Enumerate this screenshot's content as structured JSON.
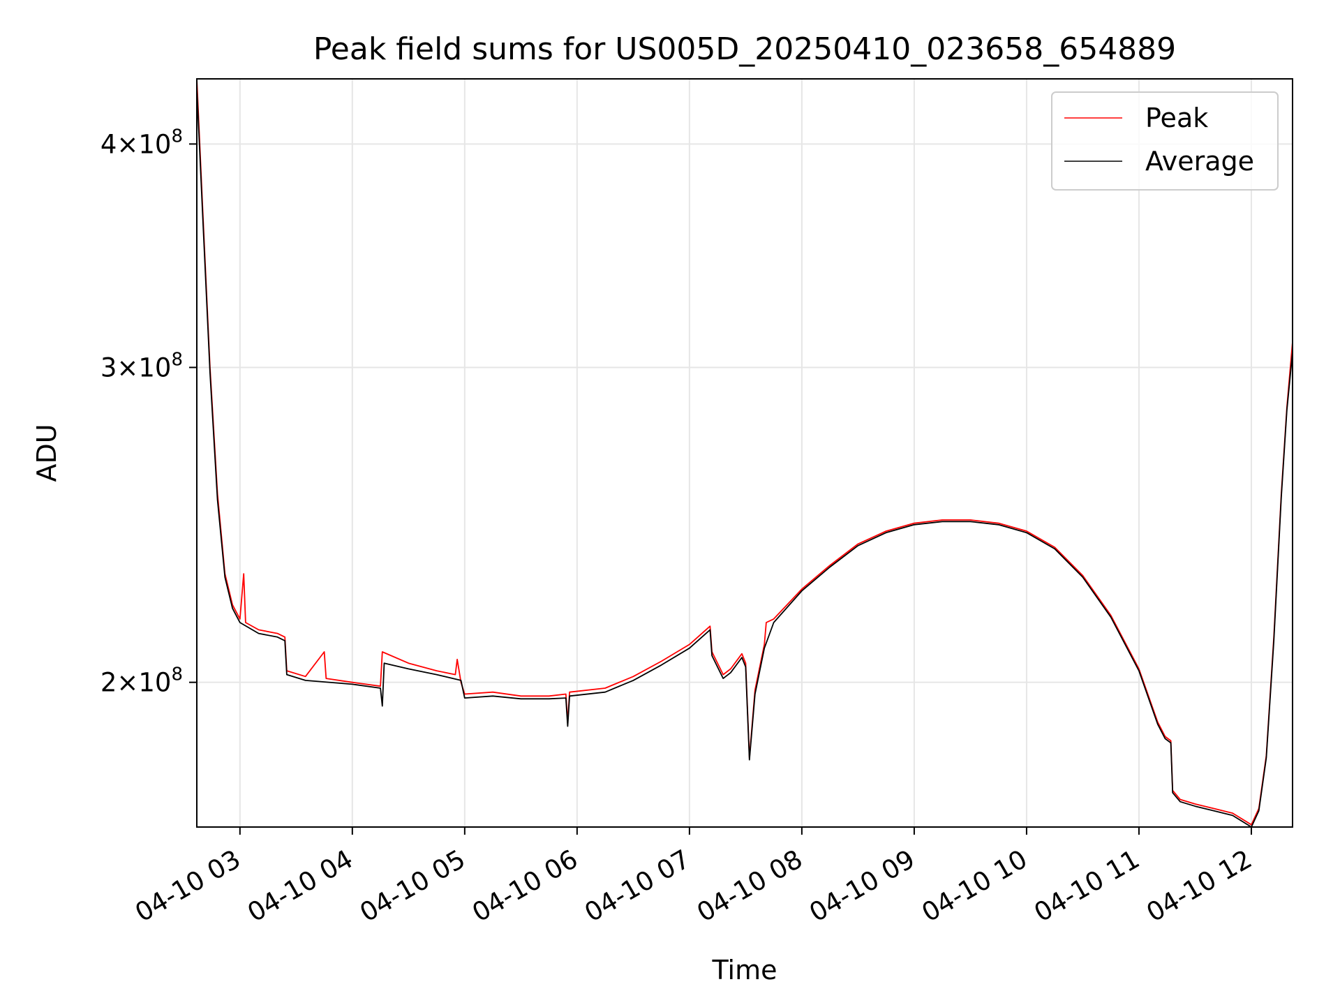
{
  "chart_data": {
    "type": "line",
    "title": "Peak field sums for US005D_20250410_023658_654889",
    "xlabel": "Time",
    "ylabel": "ADU",
    "yscale": "log",
    "ylim": [
      166000000,
      435000000
    ],
    "xlim": [
      "2025-04-10 02:36:58",
      "2025-04-10 12:22:00"
    ],
    "grid": true,
    "legend_position": "top-right",
    "x_ticks": [
      {
        "t": "2025-04-10 03:00",
        "label": "04-10 03"
      },
      {
        "t": "2025-04-10 04:00",
        "label": "04-10 04"
      },
      {
        "t": "2025-04-10 05:00",
        "label": "04-10 05"
      },
      {
        "t": "2025-04-10 06:00",
        "label": "04-10 06"
      },
      {
        "t": "2025-04-10 07:00",
        "label": "04-10 07"
      },
      {
        "t": "2025-04-10 08:00",
        "label": "04-10 08"
      },
      {
        "t": "2025-04-10 09:00",
        "label": "04-10 09"
      },
      {
        "t": "2025-04-10 10:00",
        "label": "04-10 10"
      },
      {
        "t": "2025-04-10 11:00",
        "label": "04-10 11"
      },
      {
        "t": "2025-04-10 12:00",
        "label": "04-10 12"
      }
    ],
    "y_ticks": [
      {
        "value": 200000000,
        "mantissa": "2",
        "exponent": "8"
      },
      {
        "value": 300000000,
        "mantissa": "3",
        "exponent": "8"
      },
      {
        "value": 400000000,
        "mantissa": "4",
        "exponent": "8"
      }
    ],
    "series": [
      {
        "name": "Peak",
        "color": "#ff0000",
        "points": [
          [
            "2025-04-10 02:36:58",
            435000000
          ],
          [
            "2025-04-10 02:40",
            370000000
          ],
          [
            "2025-04-10 02:44",
            300000000
          ],
          [
            "2025-04-10 02:48",
            255000000
          ],
          [
            "2025-04-10 02:52",
            230000000
          ],
          [
            "2025-04-10 02:56",
            221000000
          ],
          [
            "2025-04-10 03:00",
            217000000
          ],
          [
            "2025-04-10 03:02",
            230000000
          ],
          [
            "2025-04-10 03:03",
            216000000
          ],
          [
            "2025-04-10 03:10",
            214000000
          ],
          [
            "2025-04-10 03:20",
            213000000
          ],
          [
            "2025-04-10 03:24",
            212000000
          ],
          [
            "2025-04-10 03:25",
            203000000
          ],
          [
            "2025-04-10 03:35",
            201500000
          ],
          [
            "2025-04-10 03:45",
            208000000
          ],
          [
            "2025-04-10 03:46",
            201000000
          ],
          [
            "2025-04-10 04:00",
            200000000
          ],
          [
            "2025-04-10 04:15",
            199000000
          ],
          [
            "2025-04-10 04:16",
            208000000
          ],
          [
            "2025-04-10 04:30",
            205000000
          ],
          [
            "2025-04-10 04:45",
            203000000
          ],
          [
            "2025-04-10 04:55",
            202000000
          ],
          [
            "2025-04-10 04:56",
            206000000
          ],
          [
            "2025-04-10 04:58",
            200000000
          ],
          [
            "2025-04-10 05:00",
            197000000
          ],
          [
            "2025-04-10 05:15",
            197500000
          ],
          [
            "2025-04-10 05:30",
            196500000
          ],
          [
            "2025-04-10 05:45",
            196500000
          ],
          [
            "2025-04-10 05:54",
            197000000
          ],
          [
            "2025-04-10 05:55",
            190000000
          ],
          [
            "2025-04-10 05:56",
            197500000
          ],
          [
            "2025-04-10 06:15",
            198500000
          ],
          [
            "2025-04-10 06:30",
            201500000
          ],
          [
            "2025-04-10 06:45",
            205500000
          ],
          [
            "2025-04-10 07:00",
            210000000
          ],
          [
            "2025-04-10 07:11",
            215000000
          ],
          [
            "2025-04-10 07:12",
            208000000
          ],
          [
            "2025-04-10 07:18",
            202000000
          ],
          [
            "2025-04-10 07:22",
            203500000
          ],
          [
            "2025-04-10 07:28",
            207500000
          ],
          [
            "2025-04-10 07:30",
            205000000
          ],
          [
            "2025-04-10 07:32",
            181500000
          ],
          [
            "2025-04-10 07:35",
            198000000
          ],
          [
            "2025-04-10 07:40",
            210000000
          ],
          [
            "2025-04-10 07:41",
            216000000
          ],
          [
            "2025-04-10 07:45",
            217000000
          ],
          [
            "2025-04-10 08:00",
            225500000
          ],
          [
            "2025-04-10 08:15",
            232500000
          ],
          [
            "2025-04-10 08:30",
            239000000
          ],
          [
            "2025-04-10 08:45",
            243000000
          ],
          [
            "2025-04-10 09:00",
            245500000
          ],
          [
            "2025-04-10 09:15",
            246500000
          ],
          [
            "2025-04-10 09:30",
            246500000
          ],
          [
            "2025-04-10 09:45",
            245500000
          ],
          [
            "2025-04-10 10:00",
            243000000
          ],
          [
            "2025-04-10 10:15",
            238000000
          ],
          [
            "2025-04-10 10:30",
            229500000
          ],
          [
            "2025-04-10 10:45",
            218000000
          ],
          [
            "2025-04-10 11:00",
            203500000
          ],
          [
            "2025-04-10 11:10",
            190000000
          ],
          [
            "2025-04-10 11:14",
            186500000
          ],
          [
            "2025-04-10 11:17",
            185500000
          ],
          [
            "2025-04-10 11:18",
            174000000
          ],
          [
            "2025-04-10 11:22",
            172000000
          ],
          [
            "2025-04-10 11:30",
            171000000
          ],
          [
            "2025-04-10 11:40",
            170000000
          ],
          [
            "2025-04-10 11:50",
            169000000
          ],
          [
            "2025-04-10 12:00",
            166500000
          ],
          [
            "2025-04-10 12:04",
            170000000
          ],
          [
            "2025-04-10 12:08",
            182000000
          ],
          [
            "2025-04-10 12:12",
            212000000
          ],
          [
            "2025-04-10 12:16",
            255000000
          ],
          [
            "2025-04-10 12:19",
            285000000
          ],
          [
            "2025-04-10 12:22",
            310000000
          ]
        ]
      },
      {
        "name": "Average",
        "color": "#000000",
        "points": [
          [
            "2025-04-10 02:36:58",
            430000000
          ],
          [
            "2025-04-10 02:40",
            367000000
          ],
          [
            "2025-04-10 02:44",
            298000000
          ],
          [
            "2025-04-10 02:48",
            253000000
          ],
          [
            "2025-04-10 02:52",
            229000000
          ],
          [
            "2025-04-10 02:56",
            220000000
          ],
          [
            "2025-04-10 03:00",
            216000000
          ],
          [
            "2025-04-10 03:10",
            213000000
          ],
          [
            "2025-04-10 03:20",
            212000000
          ],
          [
            "2025-04-10 03:24",
            211000000
          ],
          [
            "2025-04-10 03:25",
            202000000
          ],
          [
            "2025-04-10 03:35",
            200500000
          ],
          [
            "2025-04-10 04:00",
            199500000
          ],
          [
            "2025-04-10 04:15",
            198500000
          ],
          [
            "2025-04-10 04:16",
            194000000
          ],
          [
            "2025-04-10 04:17",
            205000000
          ],
          [
            "2025-04-10 04:30",
            203500000
          ],
          [
            "2025-04-10 04:45",
            202000000
          ],
          [
            "2025-04-10 04:58",
            200500000
          ],
          [
            "2025-04-10 05:00",
            196000000
          ],
          [
            "2025-04-10 05:15",
            196500000
          ],
          [
            "2025-04-10 05:30",
            195800000
          ],
          [
            "2025-04-10 05:45",
            195800000
          ],
          [
            "2025-04-10 05:54",
            196000000
          ],
          [
            "2025-04-10 05:55",
            189000000
          ],
          [
            "2025-04-10 05:56",
            196500000
          ],
          [
            "2025-04-10 06:15",
            197500000
          ],
          [
            "2025-04-10 06:30",
            200500000
          ],
          [
            "2025-04-10 06:45",
            204500000
          ],
          [
            "2025-04-10 07:00",
            209000000
          ],
          [
            "2025-04-10 07:11",
            214000000
          ],
          [
            "2025-04-10 07:12",
            207000000
          ],
          [
            "2025-04-10 07:18",
            201000000
          ],
          [
            "2025-04-10 07:22",
            202500000
          ],
          [
            "2025-04-10 07:28",
            206500000
          ],
          [
            "2025-04-10 07:30",
            204000000
          ],
          [
            "2025-04-10 07:32",
            181000000
          ],
          [
            "2025-04-10 07:35",
            197000000
          ],
          [
            "2025-04-10 07:40",
            209000000
          ],
          [
            "2025-04-10 07:45",
            216000000
          ],
          [
            "2025-04-10 08:00",
            225000000
          ],
          [
            "2025-04-10 08:15",
            232000000
          ],
          [
            "2025-04-10 08:30",
            238500000
          ],
          [
            "2025-04-10 08:45",
            242500000
          ],
          [
            "2025-04-10 09:00",
            245000000
          ],
          [
            "2025-04-10 09:15",
            246000000
          ],
          [
            "2025-04-10 09:30",
            246000000
          ],
          [
            "2025-04-10 09:45",
            245000000
          ],
          [
            "2025-04-10 10:00",
            242500000
          ],
          [
            "2025-04-10 10:15",
            237500000
          ],
          [
            "2025-04-10 10:30",
            229000000
          ],
          [
            "2025-04-10 10:45",
            217500000
          ],
          [
            "2025-04-10 11:00",
            203000000
          ],
          [
            "2025-04-10 11:10",
            189500000
          ],
          [
            "2025-04-10 11:14",
            186000000
          ],
          [
            "2025-04-10 11:17",
            185000000
          ],
          [
            "2025-04-10 11:18",
            173500000
          ],
          [
            "2025-04-10 11:22",
            171500000
          ],
          [
            "2025-04-10 11:30",
            170500000
          ],
          [
            "2025-04-10 11:40",
            169500000
          ],
          [
            "2025-04-10 11:50",
            168500000
          ],
          [
            "2025-04-10 12:00",
            166000000
          ],
          [
            "2025-04-10 12:04",
            169500000
          ],
          [
            "2025-04-10 12:08",
            181500000
          ],
          [
            "2025-04-10 12:12",
            211000000
          ],
          [
            "2025-04-10 12:16",
            254000000
          ],
          [
            "2025-04-10 12:19",
            284000000
          ],
          [
            "2025-04-10 12:22",
            306000000
          ]
        ]
      }
    ]
  }
}
